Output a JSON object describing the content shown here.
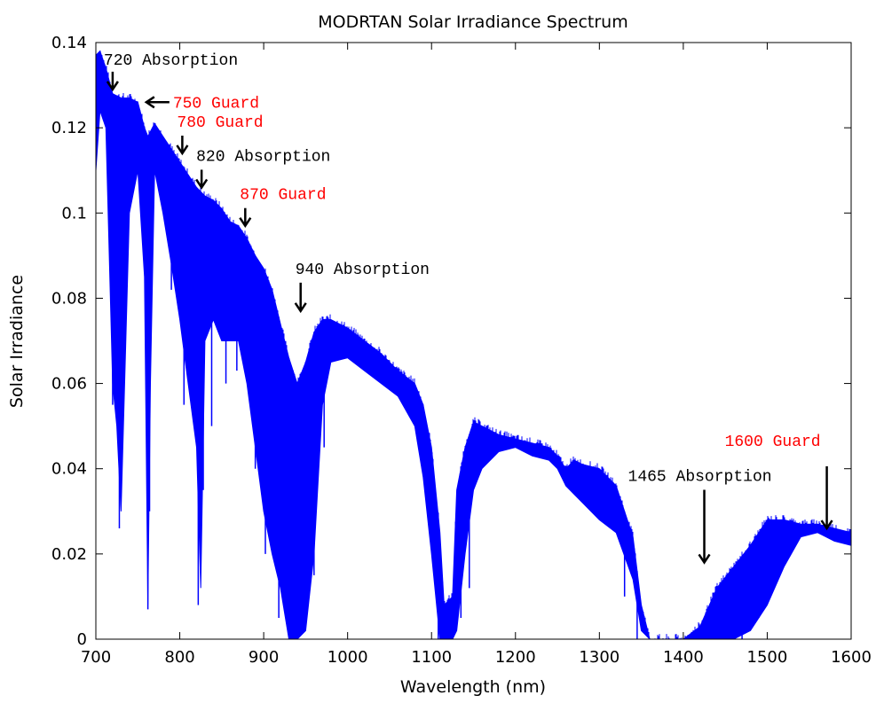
{
  "chart_data": {
    "type": "line",
    "title": "MODRTAN Solar Irradiance Spectrum",
    "xlabel": "Wavelength (nm)",
    "ylabel": "Solar Irradiance",
    "xlim": [
      700,
      1600
    ],
    "ylim": [
      0,
      0.14
    ],
    "xticks": [
      "700",
      "800",
      "900",
      "1000",
      "1100",
      "1200",
      "1300",
      "1400",
      "1500",
      "1600"
    ],
    "yticks": [
      "0",
      "0.02",
      "0.04",
      "0.06",
      "0.08",
      "0.1",
      "0.12",
      "0.14"
    ],
    "grid": false,
    "line_color": "#0000ff",
    "series": [
      {
        "upper_envelope": {
          "x": [
            700,
            705,
            712,
            720,
            730,
            740,
            750,
            758,
            762,
            770,
            780,
            790,
            800,
            810,
            820,
            830,
            840,
            850,
            860,
            870,
            880,
            890,
            900,
            910,
            920,
            930,
            940,
            950,
            960,
            970,
            980,
            1000,
            1020,
            1040,
            1060,
            1080,
            1090,
            1100,
            1110,
            1115,
            1125,
            1130,
            1140,
            1150,
            1160,
            1180,
            1200,
            1220,
            1240,
            1250,
            1260,
            1270,
            1280,
            1300,
            1320,
            1340,
            1350,
            1360,
            1380,
            1400,
            1420,
            1440,
            1460,
            1480,
            1500,
            1520,
            1540,
            1560,
            1580,
            1600
          ],
          "y": [
            0.137,
            0.138,
            0.134,
            0.128,
            0.127,
            0.127,
            0.126,
            0.12,
            0.118,
            0.121,
            0.118,
            0.115,
            0.112,
            0.109,
            0.106,
            0.104,
            0.103,
            0.101,
            0.098,
            0.097,
            0.094,
            0.09,
            0.087,
            0.082,
            0.074,
            0.066,
            0.06,
            0.065,
            0.072,
            0.075,
            0.075,
            0.073,
            0.07,
            0.067,
            0.063,
            0.06,
            0.055,
            0.045,
            0.025,
            0.008,
            0.01,
            0.035,
            0.045,
            0.051,
            0.05,
            0.048,
            0.047,
            0.046,
            0.045,
            0.043,
            0.04,
            0.042,
            0.041,
            0.04,
            0.036,
            0.024,
            0.008,
            0.0,
            0.0,
            0.0,
            0.003,
            0.012,
            0.017,
            0.022,
            0.028,
            0.028,
            0.027,
            0.027,
            0.026,
            0.025
          ]
        },
        "lower_envelope": {
          "x": [
            700,
            705,
            712,
            720,
            725,
            730,
            740,
            750,
            758,
            762,
            765,
            770,
            780,
            790,
            800,
            810,
            820,
            825,
            830,
            840,
            850,
            860,
            870,
            880,
            890,
            900,
            910,
            920,
            930,
            940,
            950,
            960,
            970,
            980,
            1000,
            1020,
            1040,
            1060,
            1080,
            1090,
            1100,
            1110,
            1115,
            1125,
            1130,
            1140,
            1150,
            1160,
            1180,
            1200,
            1220,
            1240,
            1250,
            1260,
            1270,
            1280,
            1300,
            1320,
            1340,
            1350,
            1360,
            1380,
            1400,
            1420,
            1440,
            1460,
            1480,
            1500,
            1520,
            1540,
            1560,
            1580,
            1600
          ],
          "y": [
            0.11,
            0.124,
            0.12,
            0.06,
            0.05,
            0.03,
            0.1,
            0.11,
            0.085,
            0.008,
            0.06,
            0.11,
            0.1,
            0.088,
            0.075,
            0.06,
            0.045,
            0.012,
            0.07,
            0.075,
            0.07,
            0.07,
            0.07,
            0.06,
            0.045,
            0.03,
            0.02,
            0.012,
            0.0,
            0.0,
            0.002,
            0.02,
            0.055,
            0.065,
            0.066,
            0.063,
            0.06,
            0.057,
            0.05,
            0.038,
            0.02,
            0.0,
            0.0,
            0.0,
            0.002,
            0.02,
            0.035,
            0.04,
            0.044,
            0.045,
            0.043,
            0.042,
            0.04,
            0.036,
            0.034,
            0.032,
            0.028,
            0.025,
            0.014,
            0.002,
            0.0,
            0.0,
            0.0,
            0.0,
            0.0,
            0.0,
            0.002,
            0.008,
            0.017,
            0.024,
            0.025,
            0.023,
            0.022
          ]
        },
        "dips": [
          {
            "x": 720,
            "y": 0.055
          },
          {
            "x": 728,
            "y": 0.026
          },
          {
            "x": 762,
            "y": 0.007
          },
          {
            "x": 764,
            "y": 0.03
          },
          {
            "x": 790,
            "y": 0.082
          },
          {
            "x": 805,
            "y": 0.055
          },
          {
            "x": 822,
            "y": 0.008
          },
          {
            "x": 828,
            "y": 0.035
          },
          {
            "x": 838,
            "y": 0.05
          },
          {
            "x": 855,
            "y": 0.06
          },
          {
            "x": 868,
            "y": 0.063
          },
          {
            "x": 890,
            "y": 0.04
          },
          {
            "x": 902,
            "y": 0.02
          },
          {
            "x": 918,
            "y": 0.005
          },
          {
            "x": 935,
            "y": 0.0
          },
          {
            "x": 960,
            "y": 0.015
          },
          {
            "x": 972,
            "y": 0.045
          },
          {
            "x": 1108,
            "y": 0.0
          },
          {
            "x": 1135,
            "y": 0.005
          },
          {
            "x": 1145,
            "y": 0.012
          },
          {
            "x": 1330,
            "y": 0.01
          },
          {
            "x": 1345,
            "y": 0.0
          },
          {
            "x": 1470,
            "y": 0.0
          },
          {
            "x": 1490,
            "y": 0.005
          }
        ]
      }
    ],
    "annotations": [
      {
        "text": "720 Absorption",
        "color": "#000000",
        "x": 720,
        "y": 0.129,
        "arrow": "down"
      },
      {
        "text": "750 Guard",
        "color": "#ff0000",
        "x": 758,
        "y": 0.126,
        "arrow": "left"
      },
      {
        "text": "780 Guard",
        "color": "#ff0000",
        "x": 803,
        "y": 0.114,
        "arrow": "down"
      },
      {
        "text": "820 Absorption",
        "color": "#000000",
        "x": 826,
        "y": 0.106,
        "arrow": "down"
      },
      {
        "text": "870 Guard",
        "color": "#ff0000",
        "x": 878,
        "y": 0.097,
        "arrow": "down"
      },
      {
        "text": "940 Absorption",
        "color": "#000000",
        "x": 944,
        "y": 0.077,
        "arrow": "down"
      },
      {
        "text": "1465 Absorption",
        "color": "#000000",
        "x": 1425,
        "y": 0.018,
        "arrow": "down"
      },
      {
        "text": "1600 Guard",
        "color": "#ff0000",
        "x": 1571,
        "y": 0.026,
        "arrow": "down"
      }
    ]
  }
}
